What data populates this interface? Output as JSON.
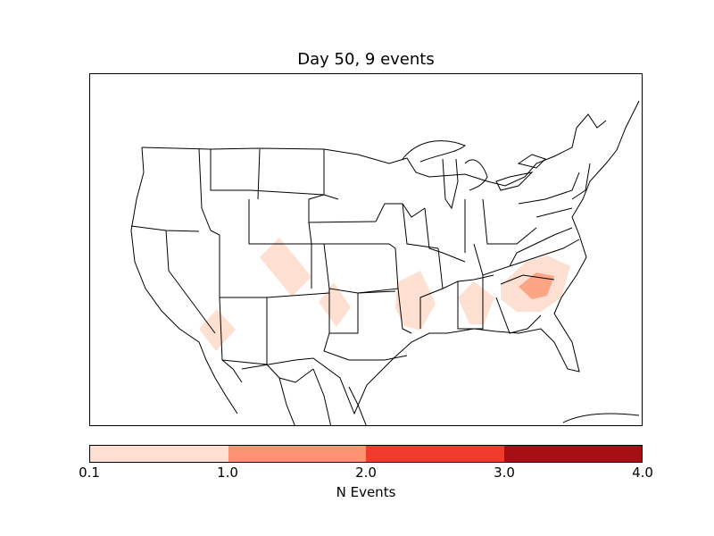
{
  "title": "Day 50, 9 events",
  "colorbar": {
    "label": "N Events",
    "ticks": [
      "0.1",
      "1.0",
      "2.0",
      "3.0",
      "4.0"
    ],
    "colors": [
      "#fee0d2",
      "#fc9272",
      "#ef3b2c",
      "#a50f15"
    ]
  },
  "map": {
    "region": "North America (contiguous US)",
    "shading_colors": {
      "low": "#fee0d2",
      "mid": "#fca585"
    }
  }
}
